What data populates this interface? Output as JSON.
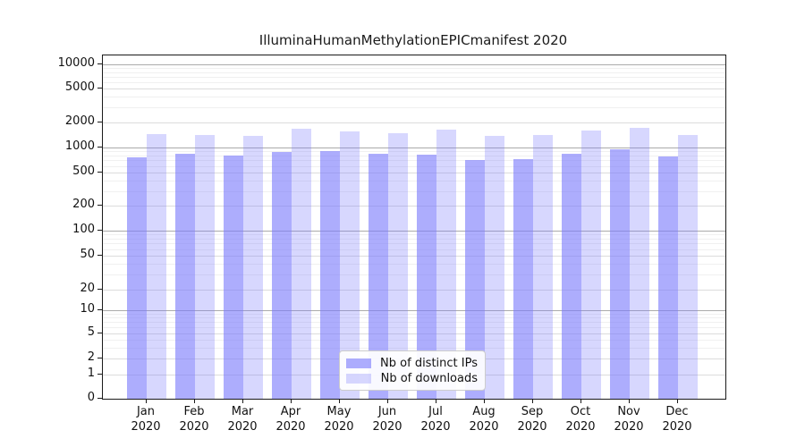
{
  "title": "IlluminaHumanMethylationEPICmanifest 2020",
  "chart_data": {
    "type": "bar",
    "title": "IlluminaHumanMethylationEPICmanifest 2020",
    "categories": [
      "Jan",
      "Feb",
      "Mar",
      "Apr",
      "May",
      "Jun",
      "Jul",
      "Aug",
      "Sep",
      "Oct",
      "Nov",
      "Dec"
    ],
    "x_tick_second_line": "2020",
    "series": [
      {
        "name": "Nb of distinct IPs",
        "color": "rgba(122,122,252,0.62)",
        "values": [
          760,
          840,
          800,
          885,
          900,
          840,
          820,
          710,
          725,
          840,
          950,
          780
        ]
      },
      {
        "name": "Nb of downloads",
        "color": "rgba(122,122,252,0.30)",
        "values": [
          1450,
          1410,
          1380,
          1685,
          1560,
          1500,
          1640,
          1370,
          1420,
          1600,
          1730,
          1420
        ]
      }
    ],
    "y_ticks": [
      0,
      1,
      2,
      5,
      10,
      20,
      50,
      100,
      200,
      500,
      1000,
      2000,
      5000,
      10000
    ],
    "y_scale": "symlog",
    "ylim": [
      0,
      10000
    ],
    "grid": "on",
    "legend_position": "lower-center-inside",
    "colors": {
      "bar_dark": "rgba(122,122,252,0.62)",
      "bar_light": "rgba(122,122,252,0.30)",
      "axis": "#1a1a1a",
      "grid_major": "#dcdcdc",
      "grid_minor": "#f0f0f0",
      "grid_decade": "#ababab"
    }
  }
}
